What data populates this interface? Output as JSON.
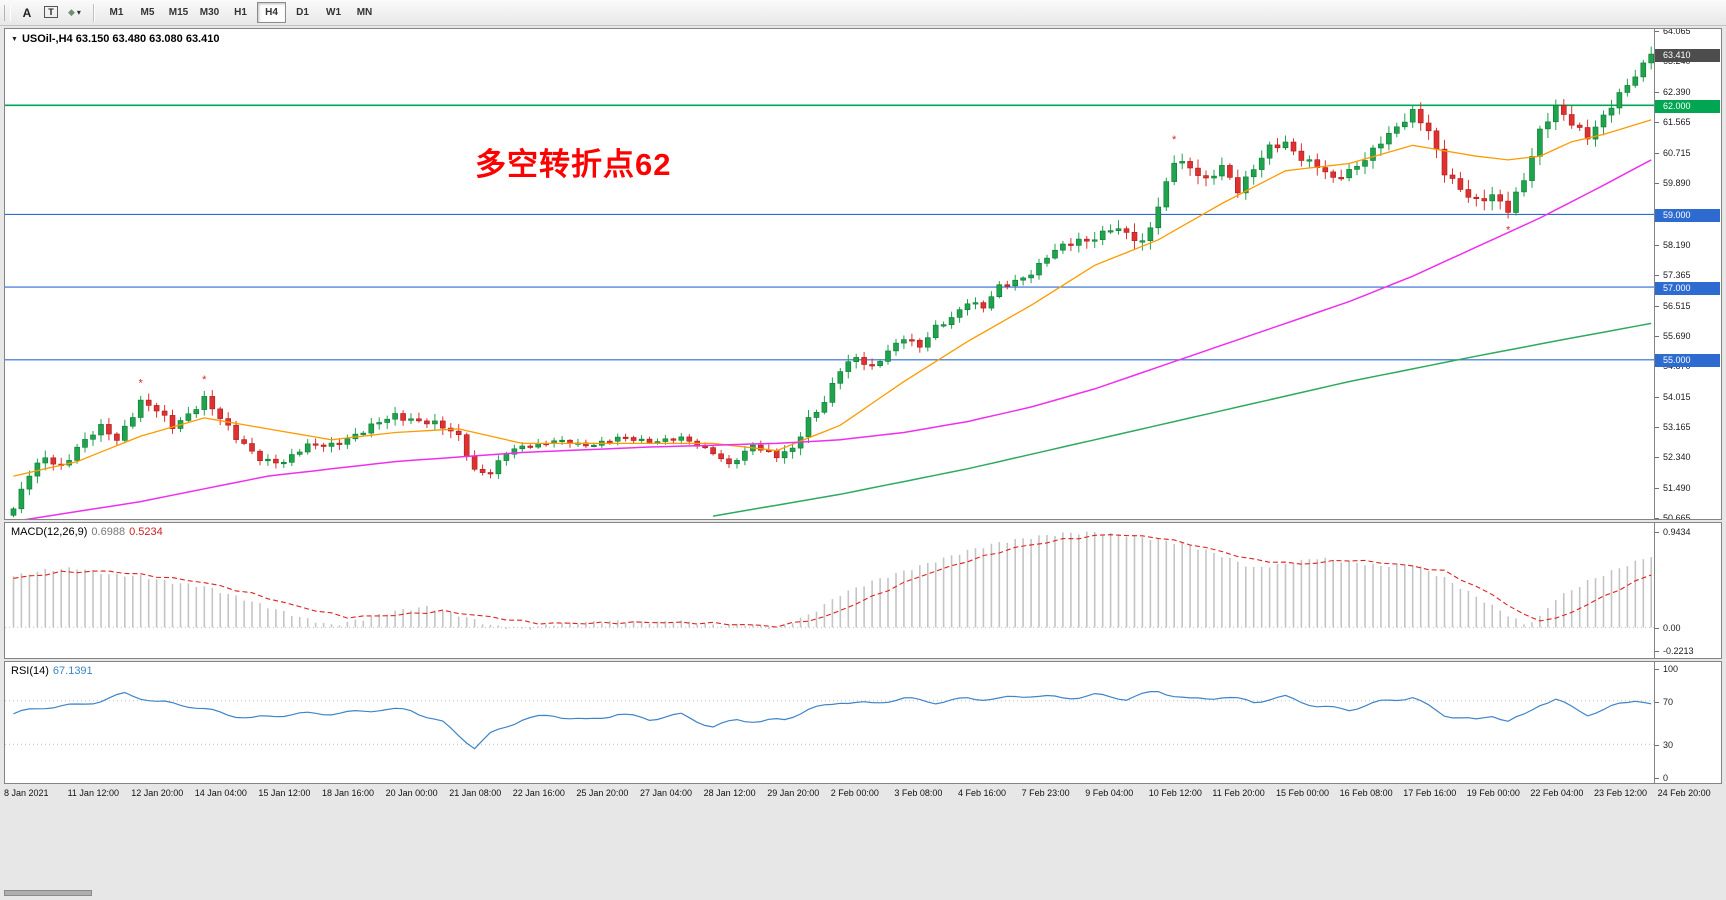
{
  "toolbar": {
    "tool_buttons": [
      {
        "name": "annotation-tool",
        "label": "A"
      },
      {
        "name": "text-tool",
        "label": "T"
      }
    ],
    "shapes_icon": "◆",
    "caret_icon": "▾",
    "timeframe_buttons": [
      "M1",
      "M5",
      "M15",
      "M30",
      "H1",
      "H4",
      "D1",
      "W1",
      "MN"
    ],
    "active_timeframe": "H4"
  },
  "main_chart": {
    "collapse_icon": "▼",
    "title": "USOil-,H4  63.150 63.480 63.080 63.410",
    "annotation": {
      "text": "多空转折点62",
      "color": "#ff0000"
    },
    "y_ticks": [
      "64.065",
      "63.240",
      "62.390",
      "61.565",
      "60.715",
      "59.890",
      "58.190",
      "57.365",
      "56.515",
      "55.690",
      "54.870",
      "54.015",
      "53.165",
      "52.340",
      "51.490",
      "50.665"
    ],
    "price_tags": [
      {
        "value": "63.410",
        "price": 63.41,
        "color": "#4d4d4d"
      },
      {
        "value": "62.000",
        "price": 62.0,
        "color": "#00a651"
      },
      {
        "value": "59.000",
        "price": 59.0,
        "color": "#2e6bd0"
      },
      {
        "value": "57.000",
        "price": 57.0,
        "color": "#2e6bd0"
      },
      {
        "value": "55.000",
        "price": 55.0,
        "color": "#2e6bd0"
      }
    ],
    "y_range": [
      50.62,
      64.1
    ]
  },
  "macd_panel": {
    "title": "MACD(12,26,9)",
    "value_main": "0.6988",
    "value_signal": "0.5234",
    "scale": [
      {
        "label": "0.9434",
        "v": 0.9434
      },
      {
        "label": "0.00",
        "v": 0
      },
      {
        "label": "-0.2213",
        "v": -0.2213
      }
    ],
    "v_range": [
      -0.2213,
      0.9434
    ]
  },
  "rsi_panel": {
    "title": "RSI(14)",
    "value": "67.1391",
    "scale": [
      {
        "label": "100",
        "v": 100
      },
      {
        "label": "70",
        "v": 70
      },
      {
        "label": "30",
        "v": 30
      },
      {
        "label": "0",
        "v": 0
      }
    ],
    "levels": [
      70,
      30
    ],
    "v_range": [
      0,
      100
    ]
  },
  "time_axis": {
    "bars_per_label": 8,
    "labels": [
      "8 Jan 2021",
      "11 Jan 12:00",
      "12 Jan 20:00",
      "14 Jan 04:00",
      "15 Jan 12:00",
      "18 Jan 16:00",
      "20 Jan 00:00",
      "21 Jan 08:00",
      "22 Jan 16:00",
      "25 Jan 20:00",
      "27 Jan 04:00",
      "28 Jan 12:00",
      "29 Jan 20:00",
      "2 Feb 00:00",
      "3 Feb 08:00",
      "4 Feb 16:00",
      "7 Feb 23:00",
      "9 Feb 04:00",
      "10 Feb 12:00",
      "11 Feb 20:00",
      "15 Feb 00:00",
      "16 Feb 08:00",
      "17 Feb 16:00",
      "19 Feb 00:00",
      "22 Feb 04:00",
      "23 Feb 12:00",
      "24 Feb 20:00"
    ]
  },
  "chart_data": {
    "type": "candlestick",
    "symbol": "USOil",
    "timeframe": "H4",
    "num_candles": 207,
    "last_close": 63.41,
    "y_range": [
      50.62,
      64.1
    ],
    "levels": [
      {
        "price": 62.0,
        "color": "#00a651",
        "width": 1.6
      },
      {
        "price": 59.0,
        "color": "#2e6bd0",
        "width": 1.1
      },
      {
        "price": 57.0,
        "color": "#2e6bd0",
        "width": 1.1
      },
      {
        "price": 55.0,
        "color": "#2e6bd0",
        "width": 1.1
      }
    ],
    "close_keypoints": [
      [
        0,
        50.9
      ],
      [
        2,
        51.8
      ],
      [
        4,
        52.3
      ],
      [
        6,
        52.1
      ],
      [
        8,
        52.6
      ],
      [
        11,
        53.1
      ],
      [
        13,
        52.8
      ],
      [
        16,
        53.9
      ],
      [
        18,
        53.6
      ],
      [
        20,
        53.1
      ],
      [
        22,
        53.5
      ],
      [
        24,
        54.0
      ],
      [
        26,
        53.4
      ],
      [
        28,
        52.8
      ],
      [
        31,
        52.3
      ],
      [
        34,
        52.2
      ],
      [
        37,
        52.6
      ],
      [
        40,
        52.7
      ],
      [
        44,
        53.0
      ],
      [
        48,
        53.5
      ],
      [
        50,
        53.4
      ],
      [
        53,
        53.2
      ],
      [
        56,
        52.9
      ],
      [
        58,
        52.0
      ],
      [
        60,
        51.9
      ],
      [
        62,
        52.4
      ],
      [
        64,
        52.6
      ],
      [
        68,
        52.8
      ],
      [
        72,
        52.6
      ],
      [
        76,
        52.9
      ],
      [
        80,
        52.7
      ],
      [
        84,
        52.9
      ],
      [
        88,
        52.4
      ],
      [
        90,
        52.1
      ],
      [
        93,
        52.7
      ],
      [
        96,
        52.3
      ],
      [
        98,
        52.5
      ],
      [
        100,
        53.4
      ],
      [
        102,
        53.9
      ],
      [
        104,
        54.7
      ],
      [
        106,
        55.0
      ],
      [
        108,
        54.8
      ],
      [
        110,
        55.3
      ],
      [
        112,
        55.6
      ],
      [
        114,
        55.3
      ],
      [
        116,
        55.9
      ],
      [
        118,
        56.2
      ],
      [
        120,
        56.6
      ],
      [
        122,
        56.4
      ],
      [
        124,
        57.0
      ],
      [
        126,
        57.2
      ],
      [
        128,
        57.4
      ],
      [
        130,
        57.8
      ],
      [
        132,
        58.1
      ],
      [
        134,
        58.3
      ],
      [
        136,
        58.4
      ],
      [
        138,
        58.6
      ],
      [
        140,
        58.4
      ],
      [
        142,
        58.2
      ],
      [
        144,
        59.3
      ],
      [
        146,
        60.5
      ],
      [
        148,
        60.2
      ],
      [
        150,
        59.9
      ],
      [
        152,
        60.4
      ],
      [
        154,
        59.7
      ],
      [
        156,
        60.2
      ],
      [
        158,
        60.8
      ],
      [
        160,
        61.0
      ],
      [
        162,
        60.6
      ],
      [
        164,
        60.3
      ],
      [
        166,
        59.9
      ],
      [
        168,
        60.2
      ],
      [
        170,
        60.6
      ],
      [
        172,
        61.0
      ],
      [
        174,
        61.3
      ],
      [
        176,
        61.8
      ],
      [
        178,
        61.4
      ],
      [
        180,
        60.2
      ],
      [
        182,
        59.6
      ],
      [
        184,
        59.3
      ],
      [
        186,
        59.6
      ],
      [
        188,
        59.2
      ],
      [
        190,
        59.9
      ],
      [
        192,
        61.2
      ],
      [
        194,
        62.0
      ],
      [
        196,
        61.6
      ],
      [
        198,
        61.1
      ],
      [
        200,
        61.6
      ],
      [
        202,
        62.3
      ],
      [
        204,
        62.9
      ],
      [
        206,
        63.41
      ]
    ],
    "volatility": [
      [
        0,
        0.35
      ],
      [
        16,
        0.3
      ],
      [
        24,
        0.32
      ],
      [
        32,
        0.25
      ],
      [
        56,
        0.33
      ],
      [
        64,
        0.2
      ],
      [
        88,
        0.18
      ],
      [
        100,
        0.35
      ],
      [
        112,
        0.28
      ],
      [
        128,
        0.25
      ],
      [
        142,
        0.45
      ],
      [
        148,
        0.4
      ],
      [
        160,
        0.35
      ],
      [
        176,
        0.4
      ],
      [
        182,
        0.45
      ],
      [
        192,
        0.42
      ],
      [
        206,
        0.35
      ]
    ],
    "ma_orange": [
      [
        0,
        51.8
      ],
      [
        8,
        52.2
      ],
      [
        16,
        52.9
      ],
      [
        24,
        53.4
      ],
      [
        32,
        53.1
      ],
      [
        40,
        52.8
      ],
      [
        48,
        53.0
      ],
      [
        56,
        53.1
      ],
      [
        64,
        52.7
      ],
      [
        72,
        52.7
      ],
      [
        80,
        52.7
      ],
      [
        88,
        52.7
      ],
      [
        96,
        52.5
      ],
      [
        104,
        53.2
      ],
      [
        112,
        54.4
      ],
      [
        120,
        55.5
      ],
      [
        128,
        56.5
      ],
      [
        136,
        57.6
      ],
      [
        144,
        58.3
      ],
      [
        152,
        59.3
      ],
      [
        160,
        60.2
      ],
      [
        168,
        60.4
      ],
      [
        176,
        60.9
      ],
      [
        184,
        60.6
      ],
      [
        188,
        60.5
      ],
      [
        192,
        60.6
      ],
      [
        196,
        61.0
      ],
      [
        200,
        61.2
      ],
      [
        206,
        61.6
      ]
    ],
    "ma_magenta": [
      [
        0,
        50.55
      ],
      [
        16,
        51.1
      ],
      [
        32,
        51.8
      ],
      [
        48,
        52.2
      ],
      [
        64,
        52.45
      ],
      [
        80,
        52.6
      ],
      [
        96,
        52.7
      ],
      [
        104,
        52.8
      ],
      [
        112,
        53.0
      ],
      [
        120,
        53.3
      ],
      [
        128,
        53.7
      ],
      [
        136,
        54.2
      ],
      [
        144,
        54.8
      ],
      [
        152,
        55.4
      ],
      [
        160,
        56.0
      ],
      [
        168,
        56.6
      ],
      [
        176,
        57.3
      ],
      [
        184,
        58.1
      ],
      [
        192,
        58.9
      ],
      [
        200,
        59.8
      ],
      [
        206,
        60.5
      ]
    ],
    "ma_green": [
      [
        88,
        50.7
      ],
      [
        104,
        51.3
      ],
      [
        120,
        52.0
      ],
      [
        136,
        52.8
      ],
      [
        152,
        53.6
      ],
      [
        168,
        54.4
      ],
      [
        184,
        55.1
      ],
      [
        196,
        55.6
      ],
      [
        206,
        56.0
      ]
    ],
    "macd_hist": [
      [
        0,
        0.5
      ],
      [
        4,
        0.56
      ],
      [
        8,
        0.58
      ],
      [
        12,
        0.52
      ],
      [
        16,
        0.5
      ],
      [
        20,
        0.44
      ],
      [
        24,
        0.4
      ],
      [
        28,
        0.3
      ],
      [
        32,
        0.2
      ],
      [
        36,
        0.1
      ],
      [
        40,
        0.02
      ],
      [
        44,
        0.08
      ],
      [
        48,
        0.16
      ],
      [
        52,
        0.2
      ],
      [
        56,
        0.12
      ],
      [
        60,
        0.02
      ],
      [
        64,
        -0.02
      ],
      [
        68,
        0.03
      ],
      [
        72,
        0.05
      ],
      [
        76,
        0.06
      ],
      [
        80,
        0.05
      ],
      [
        84,
        0.06
      ],
      [
        88,
        0.02
      ],
      [
        92,
        0.03
      ],
      [
        96,
        -0.01
      ],
      [
        100,
        0.12
      ],
      [
        104,
        0.32
      ],
      [
        108,
        0.45
      ],
      [
        112,
        0.55
      ],
      [
        116,
        0.65
      ],
      [
        120,
        0.75
      ],
      [
        124,
        0.83
      ],
      [
        128,
        0.88
      ],
      [
        132,
        0.92
      ],
      [
        136,
        0.93
      ],
      [
        140,
        0.9
      ],
      [
        144,
        0.86
      ],
      [
        148,
        0.8
      ],
      [
        152,
        0.7
      ],
      [
        156,
        0.58
      ],
      [
        160,
        0.62
      ],
      [
        164,
        0.68
      ],
      [
        168,
        0.64
      ],
      [
        172,
        0.6
      ],
      [
        176,
        0.62
      ],
      [
        180,
        0.48
      ],
      [
        184,
        0.3
      ],
      [
        188,
        0.12
      ],
      [
        190,
        0.03
      ],
      [
        192,
        0.1
      ],
      [
        194,
        0.28
      ],
      [
        198,
        0.45
      ],
      [
        202,
        0.58
      ],
      [
        206,
        0.7
      ]
    ],
    "macd_signal": [
      [
        0,
        0.48
      ],
      [
        6,
        0.54
      ],
      [
        12,
        0.55
      ],
      [
        18,
        0.5
      ],
      [
        24,
        0.44
      ],
      [
        30,
        0.33
      ],
      [
        36,
        0.2
      ],
      [
        42,
        0.1
      ],
      [
        48,
        0.12
      ],
      [
        54,
        0.16
      ],
      [
        60,
        0.1
      ],
      [
        66,
        0.04
      ],
      [
        72,
        0.04
      ],
      [
        80,
        0.05
      ],
      [
        88,
        0.04
      ],
      [
        96,
        0.01
      ],
      [
        102,
        0.1
      ],
      [
        108,
        0.3
      ],
      [
        114,
        0.5
      ],
      [
        120,
        0.65
      ],
      [
        126,
        0.78
      ],
      [
        132,
        0.86
      ],
      [
        138,
        0.91
      ],
      [
        144,
        0.88
      ],
      [
        150,
        0.78
      ],
      [
        156,
        0.66
      ],
      [
        162,
        0.62
      ],
      [
        168,
        0.66
      ],
      [
        174,
        0.62
      ],
      [
        180,
        0.55
      ],
      [
        186,
        0.32
      ],
      [
        190,
        0.12
      ],
      [
        193,
        0.05
      ],
      [
        196,
        0.15
      ],
      [
        200,
        0.3
      ],
      [
        206,
        0.52
      ]
    ],
    "rsi": [
      [
        0,
        58
      ],
      [
        4,
        63
      ],
      [
        8,
        66
      ],
      [
        11,
        71
      ],
      [
        14,
        77
      ],
      [
        18,
        68
      ],
      [
        22,
        65
      ],
      [
        26,
        60
      ],
      [
        30,
        54
      ],
      [
        34,
        56
      ],
      [
        38,
        58
      ],
      [
        42,
        60
      ],
      [
        46,
        62
      ],
      [
        50,
        60
      ],
      [
        54,
        50
      ],
      [
        58,
        28
      ],
      [
        60,
        40
      ],
      [
        64,
        52
      ],
      [
        68,
        56
      ],
      [
        72,
        53
      ],
      [
        76,
        58
      ],
      [
        80,
        52
      ],
      [
        84,
        57
      ],
      [
        88,
        47
      ],
      [
        91,
        53
      ],
      [
        94,
        50
      ],
      [
        97,
        52
      ],
      [
        100,
        62
      ],
      [
        104,
        70
      ],
      [
        108,
        67
      ],
      [
        112,
        71
      ],
      [
        116,
        69
      ],
      [
        120,
        73
      ],
      [
        124,
        71
      ],
      [
        128,
        74
      ],
      [
        132,
        73
      ],
      [
        136,
        76
      ],
      [
        140,
        71
      ],
      [
        144,
        78
      ],
      [
        148,
        72
      ],
      [
        152,
        74
      ],
      [
        156,
        68
      ],
      [
        160,
        73
      ],
      [
        164,
        66
      ],
      [
        168,
        62
      ],
      [
        172,
        68
      ],
      [
        176,
        73
      ],
      [
        180,
        58
      ],
      [
        184,
        52
      ],
      [
        186,
        56
      ],
      [
        188,
        50
      ],
      [
        190,
        56
      ],
      [
        192,
        67
      ],
      [
        194,
        72
      ],
      [
        196,
        65
      ],
      [
        198,
        58
      ],
      [
        200,
        61
      ],
      [
        202,
        66
      ],
      [
        204,
        70
      ],
      [
        206,
        67.1
      ]
    ],
    "markers": [
      {
        "i": 16,
        "p": 54.35
      },
      {
        "i": 24,
        "p": 54.45
      },
      {
        "i": 146,
        "p": 61.05
      },
      {
        "i": 188,
        "p": 58.55
      }
    ],
    "marker_glyph": "*",
    "colors": {
      "up": "#1fa34d",
      "up_border": "#0e7a36",
      "down": "#e03030",
      "down_border": "#a61f1f",
      "ma_orange": "#ff9a00",
      "ma_magenta": "#ee30ee",
      "ma_green": "#2eaa5e",
      "macd_bar": "#c4c4c4",
      "macd_signal": "#e02020",
      "rsi_line": "#3e84c8",
      "level_dotted": "#c0c0c0",
      "macd_value_main": "#787878",
      "macd_value_signal": "#cc2222",
      "rsi_value": "#3e84c8"
    }
  }
}
